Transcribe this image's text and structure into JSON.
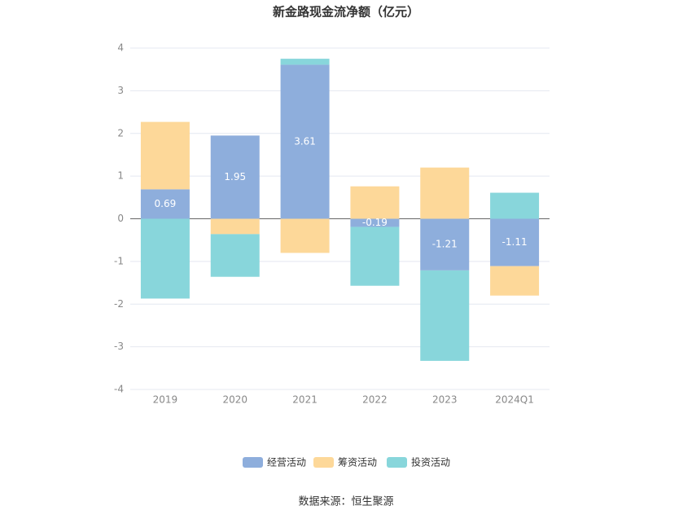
{
  "chart_data": {
    "type": "bar",
    "stacked": true,
    "title": "新金路现金流净额（亿元）",
    "categories": [
      "2019",
      "2020",
      "2021",
      "2022",
      "2023",
      "2024Q1"
    ],
    "series": [
      {
        "name": "经营活动",
        "color": "#8eaedc",
        "values": [
          0.69,
          1.95,
          3.61,
          -0.19,
          -1.21,
          -1.11
        ]
      },
      {
        "name": "筹资活动",
        "color": "#fdd899",
        "values": [
          1.58,
          -0.36,
          -0.8,
          0.76,
          1.2,
          -0.69
        ]
      },
      {
        "name": "投资活动",
        "color": "#88d6db",
        "values": [
          -1.87,
          -1.0,
          0.14,
          -1.38,
          -2.12,
          0.61
        ]
      }
    ],
    "data_labels_series": 0,
    "ylim": [
      -4,
      4
    ],
    "yticks": [
      -4,
      -3,
      -2,
      -1,
      0,
      1,
      2,
      3,
      4
    ],
    "grid": true,
    "source": "数据来源：恒生聚源"
  }
}
